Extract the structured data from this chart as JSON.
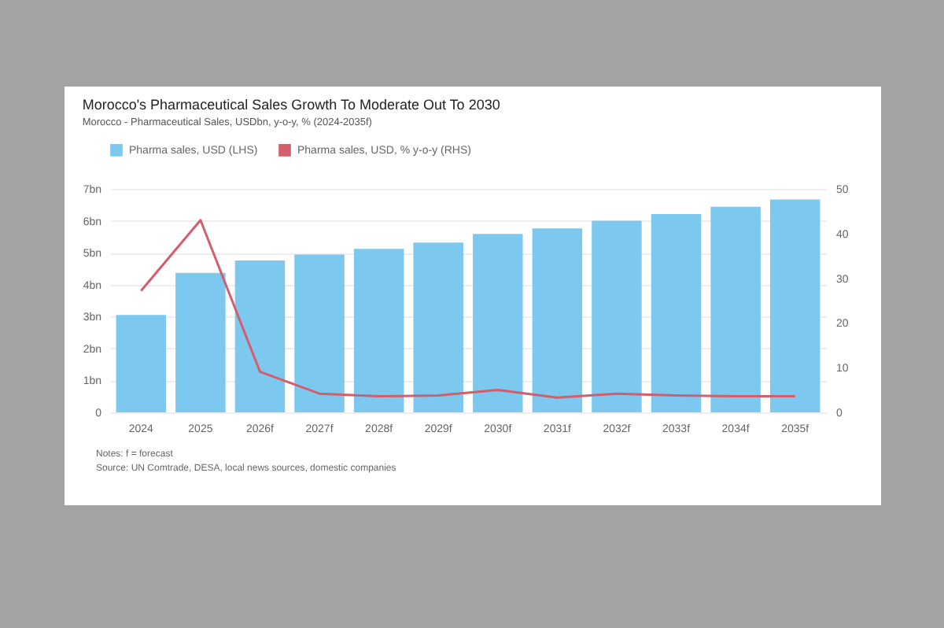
{
  "chart_data": {
    "type": "bar",
    "title": "Morocco's Pharmaceutical Sales Growth To Moderate Out To 2030",
    "subtitle": "Morocco - Pharmaceutical Sales, USDbn, y-o-y, % (2024-2035f)",
    "categories": [
      "2024",
      "2025",
      "2026f",
      "2027f",
      "2028f",
      "2029f",
      "2030f",
      "2031f",
      "2032f",
      "2033f",
      "2034f",
      "2035f"
    ],
    "series": [
      {
        "name": "Pharma sales, USD (LHS)",
        "axis": "y",
        "color": "#7cc8ef",
        "values": [
          3.05,
          4.37,
          4.76,
          4.94,
          5.12,
          5.32,
          5.59,
          5.76,
          6.0,
          6.21,
          6.44,
          6.67
        ]
      },
      {
        "name": "Pharma sales, USD, % y-o-y (RHS)",
        "type": "line",
        "axis": "y2",
        "color": "#d45d6c",
        "values": [
          27.2,
          43.0,
          9.1,
          4.2,
          3.6,
          3.8,
          5.0,
          3.3,
          4.2,
          3.8,
          3.6,
          3.6
        ]
      }
    ],
    "ylim": [
      0,
      7
    ],
    "yticks": [
      0,
      {
        "value": 1,
        "label": "1bn"
      },
      {
        "value": 2,
        "label": "2bn"
      },
      {
        "value": 3,
        "label": "3bn"
      },
      {
        "value": 4,
        "label": "4bn"
      },
      {
        "value": 5,
        "label": "5bn"
      },
      {
        "value": 6,
        "label": "6bn"
      },
      {
        "value": 7,
        "label": "7bn"
      }
    ],
    "y2lim": [
      0,
      50
    ],
    "y2ticks": [
      0,
      10,
      20,
      30,
      40,
      50
    ],
    "grid": "y",
    "legend": "top",
    "annotations": [
      "Notes: f = forecast",
      "Source: UN Comtrade, DESA, local news sources, domestic companies"
    ]
  }
}
